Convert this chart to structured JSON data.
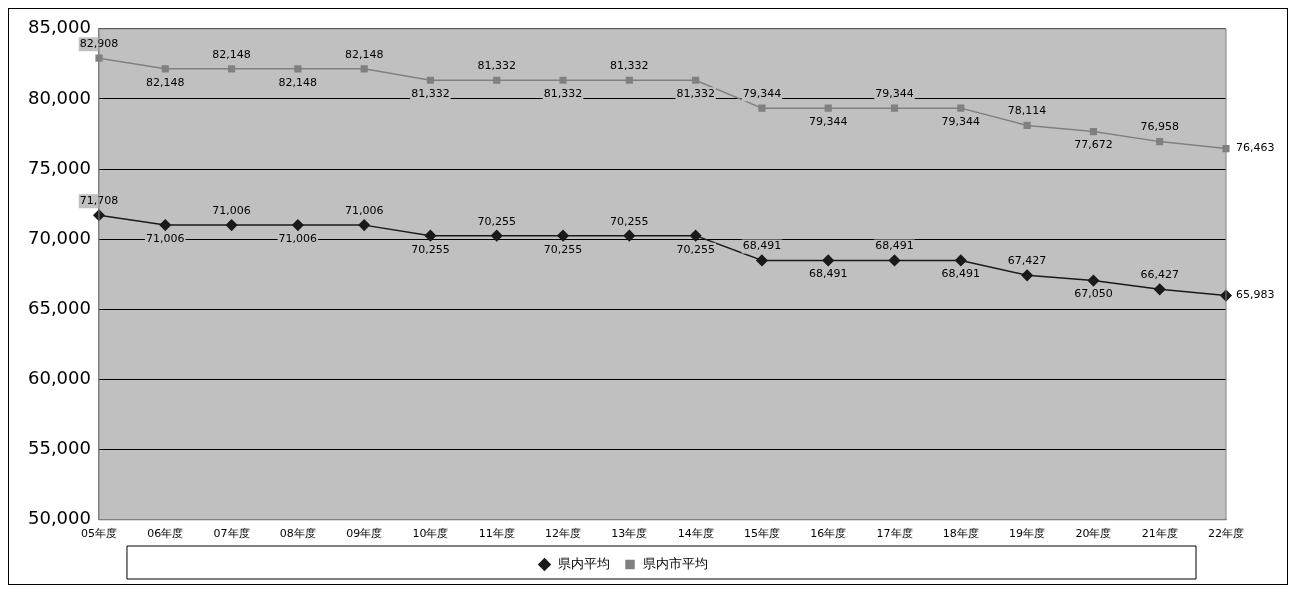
{
  "chart_data": {
    "type": "line",
    "categories": [
      "05年度",
      "06年度",
      "07年度",
      "08年度",
      "09年度",
      "10年度",
      "11年度",
      "12年度",
      "13年度",
      "14年度",
      "15年度",
      "16年度",
      "17年度",
      "18年度",
      "19年度",
      "20年度",
      "21年度",
      "22年度"
    ],
    "series": [
      {
        "name": "県内平均",
        "color": "#1a1a1a",
        "marker": "diamond",
        "values": [
          71708,
          71006,
          71006,
          71006,
          71006,
          70255,
          70255,
          70255,
          70255,
          70255,
          68491,
          68491,
          68491,
          68491,
          67427,
          67050,
          66427,
          65983
        ],
        "value_labels": [
          "71,708",
          "71,006",
          "71,006",
          "71,006",
          "71,006",
          "70,255",
          "70,255",
          "70,255",
          "70,255",
          "70,255",
          "68,491",
          "68,491",
          "68,491",
          "68,491",
          "67,427",
          "67,050",
          "66,427",
          "65,983"
        ]
      },
      {
        "name": "県内市平均",
        "color": "#808080",
        "marker": "square",
        "values": [
          82908,
          82148,
          82148,
          82148,
          82148,
          81332,
          81332,
          81332,
          81332,
          81332,
          79344,
          79344,
          79344,
          79344,
          78114,
          77672,
          76958,
          76463
        ],
        "value_labels": [
          "82,908",
          "82,148",
          "82,148",
          "82,148",
          "82,148",
          "81,332",
          "81,332",
          "81,332",
          "81,332",
          "81,332",
          "79,344",
          "79,344",
          "79,344",
          "79,344",
          "78,114",
          "77,672",
          "76,958",
          "76,463"
        ]
      }
    ],
    "ylim": [
      50000,
      85000
    ],
    "yticks": [
      {
        "value": 50000,
        "label": "50,000"
      },
      {
        "value": 55000,
        "label": "55,000"
      },
      {
        "value": 60000,
        "label": "60,000"
      },
      {
        "value": 65000,
        "label": "65,000"
      },
      {
        "value": 70000,
        "label": "70,000"
      },
      {
        "value": 75000,
        "label": "75,000"
      },
      {
        "value": 80000,
        "label": "80,000"
      },
      {
        "value": 85000,
        "label": "85,000"
      }
    ],
    "grid": "y",
    "legend": "bottom",
    "line_style": "solid"
  }
}
